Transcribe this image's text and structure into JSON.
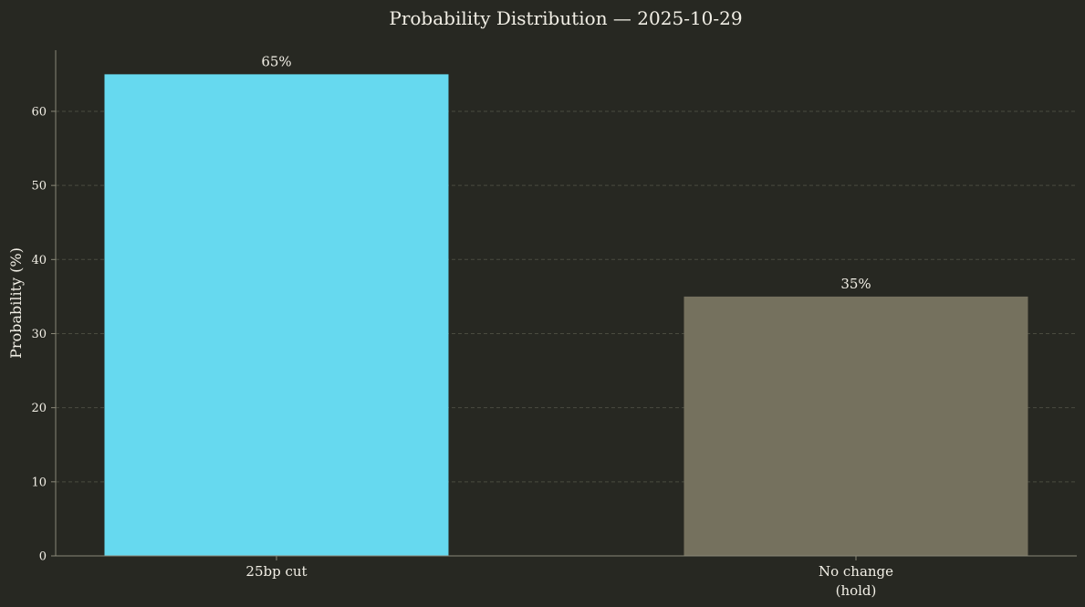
{
  "chart_data": {
    "type": "bar",
    "title": "Probability Distribution — 2025-10-29",
    "xlabel": "",
    "ylabel": "Probability (%)",
    "categories": [
      [
        "25bp cut"
      ],
      [
        "No change",
        "(hold)"
      ]
    ],
    "values": [
      65,
      35
    ],
    "data_labels": [
      "65%",
      "35%"
    ],
    "bar_colors": [
      "#66d9ef",
      "#75715e"
    ],
    "ylim": [
      0,
      68.25
    ],
    "yticks": [
      0,
      10,
      20,
      30,
      40,
      50,
      60
    ],
    "grid": true,
    "legend": "none"
  },
  "colors": {
    "background": "#272822",
    "text": "#f2efe6",
    "axis": "#8a8878",
    "grid": "#4a4b40"
  }
}
